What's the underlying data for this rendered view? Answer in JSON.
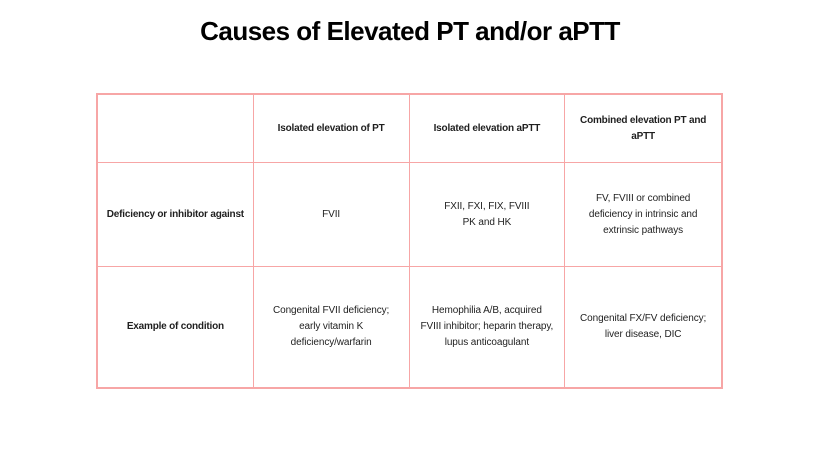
{
  "title": "Causes of Elevated PT and/or aPTT",
  "colors": {
    "table_border": "#f7a6a6",
    "title_text": "#000000",
    "cell_text": "#1f1f1f",
    "background": "#ffffff"
  },
  "table": {
    "header": [
      "",
      "Isolated elevation of PT",
      "Isolated elevation aPTT",
      "Combined elevation PT and\naPTT"
    ],
    "rows": [
      {
        "label": "Deficiency or inhibitor against",
        "cells": [
          "FVII",
          "FXII, FXI, FIX, FVIII\nPK and HK",
          "FV, FVIII or combined\ndeficiency in intrinsic and\nextrinsic pathways"
        ]
      },
      {
        "label": "Example of condition",
        "cells": [
          "Congenital FVII deficiency;\nearly vitamin K\ndeficiency/warfarin",
          "Hemophilia A/B, acquired\nFVIII inhibitor; heparin therapy,\nlupus anticoagulant",
          "Congenital FX/FV deficiency;\nliver disease, DIC"
        ]
      }
    ]
  }
}
